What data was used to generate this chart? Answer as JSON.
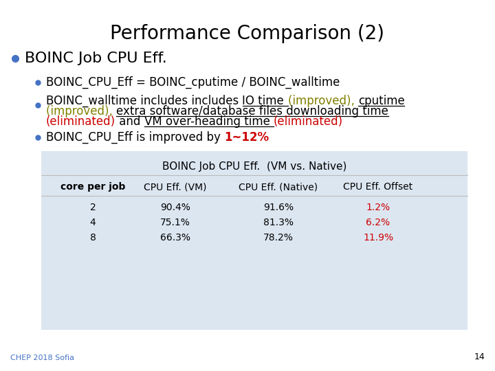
{
  "title": "Performance Comparison (2)",
  "title_fontsize": 20,
  "bg_color": "#ffffff",
  "bullet_color": "#4472C4",
  "bullet1_text": "BOINC Job CPU Eff.",
  "bullet1_fontsize": 16,
  "sub_bullet_fontsize": 12,
  "sub_bullet1": "BOINC_CPU_Eff = BOINC_cputime / BOINC_walltime",
  "table_title": "BOINC Job CPU Eff.  (VM vs. Native)",
  "table_bg": "#dce6f1",
  "table_header": [
    "core per job",
    "CPU Eff. (VM)",
    "CPU Eff. (Native)",
    "CPU Eff. Offset"
  ],
  "table_rows": [
    [
      "2",
      "90.4%",
      "91.6%",
      "1.2%"
    ],
    [
      "4",
      "75.1%",
      "81.3%",
      "6.2%"
    ],
    [
      "8",
      "66.3%",
      "78.2%",
      "11.9%"
    ]
  ],
  "table_offset_color": "#cc0000",
  "footer_text": "CHEP 2018 Sofia",
  "footer_color": "#4472C4",
  "page_number": "14",
  "text_color": "#000000",
  "olive_color": "#808000",
  "red_color": "#cc0000"
}
